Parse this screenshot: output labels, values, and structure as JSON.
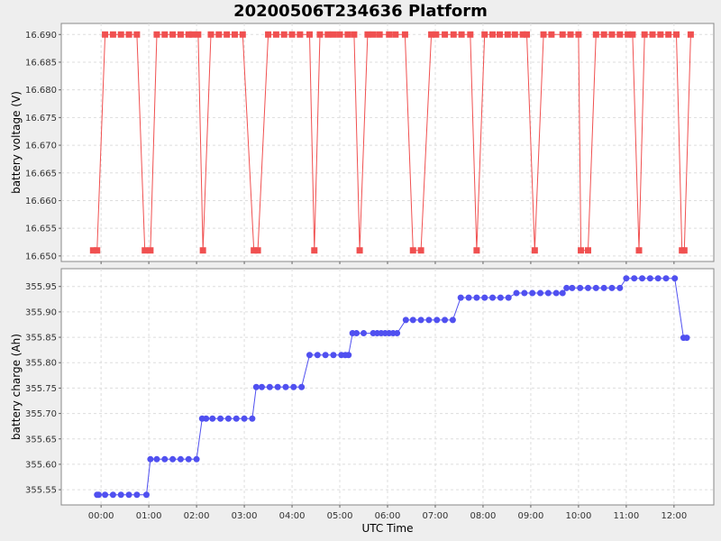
{
  "chart_data": {
    "title": "20200506T234636 Platform",
    "xlabel": "UTC Time",
    "x_range_minutes": [
      -50,
      770
    ],
    "x_ticks": [
      "00:00",
      "01:00",
      "02:00",
      "03:00",
      "04:00",
      "05:00",
      "06:00",
      "07:00",
      "08:00",
      "09:00",
      "10:00",
      "11:00",
      "12:00"
    ],
    "x_tick_minutes": [
      0,
      60,
      120,
      180,
      240,
      300,
      360,
      420,
      480,
      540,
      600,
      660,
      720
    ],
    "grid": true,
    "panels": [
      {
        "type": "line",
        "ylabel": "battery voltage (V)",
        "ylim": [
          16.649,
          16.692
        ],
        "y_ticks": [
          "16.650",
          "16.655",
          "16.660",
          "16.665",
          "16.670",
          "16.675",
          "16.680",
          "16.685",
          "16.690"
        ],
        "y_tick_values": [
          16.65,
          16.655,
          16.66,
          16.665,
          16.67,
          16.675,
          16.68,
          16.685,
          16.69
        ],
        "color": "#f05050",
        "marker": "square",
        "series": [
          {
            "x": [
              -10,
              -5,
              5,
              15,
              25,
              35,
              45,
              55,
              62,
              70,
              80,
              90,
              100,
              110,
              115,
              122,
              128,
              138,
              148,
              158,
              168,
              178,
              192,
              197,
              210,
              220,
              230,
              240,
              250,
              262,
              268,
              275,
              285,
              292,
              300,
              310,
              318,
              325,
              335,
              342,
              350,
              362,
              370,
              382,
              392,
              402,
              415,
              421,
              432,
              443,
              453,
              464,
              472,
              482,
              492,
              501,
              511,
              520,
              530,
              535,
              545,
              556,
              566,
              580,
              590,
              600,
              603,
              612,
              622,
              632,
              642,
              652,
              662,
              668,
              676,
              683,
              693,
              703,
              713,
              723,
              730,
              733,
              741
            ],
            "y": [
              16.651,
              16.651,
              16.69,
              16.69,
              16.69,
              16.69,
              16.69,
              16.651,
              16.651,
              16.69,
              16.69,
              16.69,
              16.69,
              16.69,
              16.69,
              16.69,
              16.651,
              16.69,
              16.69,
              16.69,
              16.69,
              16.69,
              16.651,
              16.651,
              16.69,
              16.69,
              16.69,
              16.69,
              16.69,
              16.69,
              16.651,
              16.69,
              16.69,
              16.69,
              16.69,
              16.69,
              16.69,
              16.651,
              16.69,
              16.69,
              16.69,
              16.69,
              16.69,
              16.69,
              16.651,
              16.651,
              16.69,
              16.69,
              16.69,
              16.69,
              16.69,
              16.69,
              16.651,
              16.69,
              16.69,
              16.69,
              16.69,
              16.69,
              16.69,
              16.69,
              16.651,
              16.69,
              16.69,
              16.69,
              16.69,
              16.69,
              16.651,
              16.651,
              16.69,
              16.69,
              16.69,
              16.69,
              16.69,
              16.69,
              16.651,
              16.69,
              16.69,
              16.69,
              16.69,
              16.69,
              16.651,
              16.651,
              16.69
            ]
          }
        ]
      },
      {
        "type": "line",
        "ylabel": "battery charge (Ah)",
        "ylim": [
          355.52,
          355.985
        ],
        "y_ticks": [
          "355.55",
          "355.60",
          "355.65",
          "355.70",
          "355.75",
          "355.80",
          "355.85",
          "355.90",
          "355.95"
        ],
        "y_tick_values": [
          355.55,
          355.6,
          355.65,
          355.7,
          355.75,
          355.8,
          355.85,
          355.9,
          355.95
        ],
        "color": "#5050f0",
        "marker": "circle",
        "series": [
          {
            "x": [
              -5,
              -3,
              5,
              15,
              25,
              35,
              45,
              57,
              62,
              70,
              80,
              90,
              100,
              110,
              120,
              127,
              132,
              140,
              150,
              160,
              170,
              180,
              190,
              195,
              202,
              212,
              222,
              232,
              242,
              252,
              262,
              272,
              282,
              292,
              302,
              307,
              311,
              316,
              321,
              330,
              342,
              347,
              352,
              357,
              362,
              367,
              372,
              383,
              392,
              402,
              412,
              422,
              432,
              442,
              452,
              462,
              472,
              482,
              492,
              502,
              512,
              522,
              532,
              542,
              552,
              562,
              572,
              580,
              585,
              592,
              602,
              612,
              622,
              632,
              642,
              652,
              660,
              670,
              680,
              690,
              700,
              710,
              721,
              732,
              736
            ],
            "y": [
              355.54,
              355.54,
              355.54,
              355.54,
              355.54,
              355.54,
              355.54,
              355.54,
              355.61,
              355.61,
              355.61,
              355.61,
              355.61,
              355.61,
              355.61,
              355.69,
              355.69,
              355.69,
              355.69,
              355.69,
              355.69,
              355.69,
              355.69,
              355.752,
              355.752,
              355.752,
              355.752,
              355.752,
              355.752,
              355.752,
              355.815,
              355.815,
              355.815,
              355.815,
              355.815,
              355.815,
              355.815,
              355.858,
              355.858,
              355.858,
              355.858,
              355.858,
              355.858,
              355.858,
              355.858,
              355.858,
              355.858,
              355.884,
              355.884,
              355.884,
              355.884,
              355.884,
              355.884,
              355.884,
              355.928,
              355.928,
              355.928,
              355.928,
              355.928,
              355.928,
              355.928,
              355.937,
              355.937,
              355.937,
              355.937,
              355.937,
              355.937,
              355.937,
              355.947,
              355.947,
              355.947,
              355.947,
              355.947,
              355.947,
              355.947,
              355.947,
              355.966,
              355.966,
              355.966,
              355.966,
              355.966,
              355.966,
              355.966,
              355.849,
              355.849
            ]
          }
        ]
      }
    ]
  }
}
